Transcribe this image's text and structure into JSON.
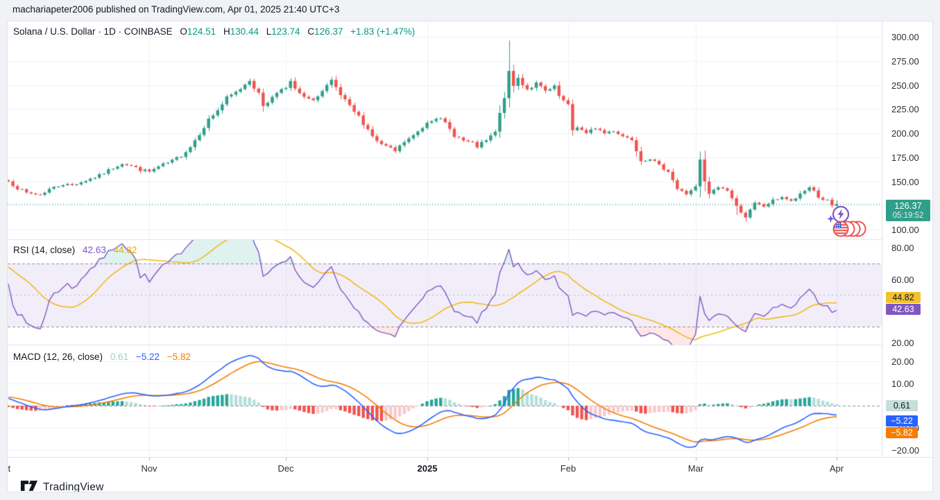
{
  "page": {
    "publish_info": "machariapeter2006 published on TradingView.com, Apr 01, 2025 21:40 UTC+3"
  },
  "chart": {
    "legend": {
      "title": "Solana / U.S. Dollar",
      "meta": " · 1D · COINBASE",
      "o_label": "O",
      "o_value": "124.51",
      "h_label": "H",
      "h_value": "130.44",
      "l_label": "L",
      "l_value": "123.74",
      "c_label": "C",
      "c_value": "126.37",
      "change": "+1.83 (+1.47%)"
    },
    "price_badge": {
      "price": "126.37",
      "countdown": "05:19:52"
    }
  },
  "rsi_panel": {
    "legend_label": "RSI (14, close)",
    "line_value": "42.63",
    "ma_value": "44.82"
  },
  "macd_panel": {
    "legend_label": "MACD (12, 26, close)",
    "hist_value": "0.61",
    "macd_value": "−5.22",
    "signal_value": "−5.82"
  },
  "footer": {
    "logo_text": "TradingView"
  },
  "colors": {
    "up": "#2f9e8a",
    "down": "#ef5350",
    "teal_text": "#089981",
    "rsi_line": "#7e57c2",
    "rsi_ma": "#f0b91d",
    "rsi_band_fill": "rgba(126,87,194,0.10)",
    "rsi_over_fill": "rgba(8,153,129,0.13)",
    "rsi_under_fill": "rgba(244,67,54,0.12)",
    "macd_line": "#2962ff",
    "macd_signal": "#f57c00",
    "hist_pos": "#26a69a",
    "hist_pos_weak": "#b2dfdb",
    "hist_neg": "#ef5350",
    "hist_neg_weak": "#f8c9cb",
    "grid": "#eef1f6",
    "separator": "#e0e3eb",
    "dash": "#8a8e99",
    "dash_mid": "#b0b3bc",
    "last_price_line": "#089981"
  },
  "chart_data": {
    "type": "candlestick",
    "symbol": "Solana / U.S. Dollar",
    "exchange": "COINBASE",
    "interval": "1D",
    "last_price": 126.37,
    "final_candle": {
      "open": 124.51,
      "high": 130.44,
      "low": 123.74,
      "close": 126.37
    },
    "price_axis": {
      "min": 100,
      "max": 300,
      "ticks": [
        {
          "label": "300.00",
          "value": 300
        },
        {
          "label": "275.00",
          "value": 275
        },
        {
          "label": "250.00",
          "value": 250
        },
        {
          "label": "225.00",
          "value": 225
        },
        {
          "label": "200.00",
          "value": 200
        },
        {
          "label": "175.00",
          "value": 175
        },
        {
          "label": "150.00",
          "value": 150
        },
        {
          "label": "125.00",
          "value": 125
        },
        {
          "label": "100.00",
          "value": 100
        }
      ]
    },
    "time_ticks": [
      {
        "label": "Oct",
        "day": -1,
        "bold": false
      },
      {
        "label": "Nov",
        "day": 31,
        "bold": false
      },
      {
        "label": "Dec",
        "day": 61,
        "bold": false
      },
      {
        "label": "2025",
        "day": 92,
        "bold": true
      },
      {
        "label": "Feb",
        "day": 123,
        "bold": false
      },
      {
        "label": "Mar",
        "day": 151,
        "bold": false
      },
      {
        "label": "Apr",
        "day": 182,
        "bold": false
      }
    ],
    "lead_in_days": 40,
    "days_total": 182,
    "close_waypoints": [
      [
        -40,
        134
      ],
      [
        -35,
        130
      ],
      [
        -30,
        127
      ],
      [
        -25,
        135
      ],
      [
        -20,
        146
      ],
      [
        -15,
        152
      ],
      [
        -10,
        147
      ],
      [
        -5,
        155
      ],
      [
        -2,
        152
      ],
      [
        0,
        150
      ],
      [
        2,
        143
      ],
      [
        4,
        138
      ],
      [
        7,
        136
      ],
      [
        9,
        142
      ],
      [
        12,
        147
      ],
      [
        14,
        146
      ],
      [
        17,
        151
      ],
      [
        20,
        156
      ],
      [
        23,
        164
      ],
      [
        25,
        169
      ],
      [
        27,
        166
      ],
      [
        29,
        162
      ],
      [
        31,
        160
      ],
      [
        33,
        165
      ],
      [
        36,
        171
      ],
      [
        38,
        177
      ],
      [
        40,
        186
      ],
      [
        42,
        200
      ],
      [
        44,
        214
      ],
      [
        46,
        224
      ],
      [
        48,
        236
      ],
      [
        50,
        242
      ],
      [
        52,
        251
      ],
      [
        53,
        256
      ],
      [
        55,
        240
      ],
      [
        56,
        229
      ],
      [
        58,
        237
      ],
      [
        60,
        248
      ],
      [
        61,
        246
      ],
      [
        62,
        252
      ],
      [
        64,
        240
      ],
      [
        66,
        234
      ],
      [
        68,
        238
      ],
      [
        70,
        248
      ],
      [
        71,
        253
      ],
      [
        73,
        239
      ],
      [
        75,
        227
      ],
      [
        77,
        217
      ],
      [
        79,
        204
      ],
      [
        81,
        191
      ],
      [
        83,
        186
      ],
      [
        85,
        181
      ],
      [
        87,
        191
      ],
      [
        89,
        197
      ],
      [
        91,
        206
      ],
      [
        92,
        212
      ],
      [
        94,
        217
      ],
      [
        96,
        210
      ],
      [
        98,
        198
      ],
      [
        100,
        192
      ],
      [
        102,
        189
      ],
      [
        103,
        186
      ],
      [
        105,
        192
      ],
      [
        107,
        201
      ],
      [
        109,
        238
      ],
      [
        110,
        262
      ],
      [
        111,
        249
      ],
      [
        112,
        257
      ],
      [
        114,
        246
      ],
      [
        116,
        251
      ],
      [
        118,
        243
      ],
      [
        120,
        247
      ],
      [
        121,
        238
      ],
      [
        123,
        228
      ],
      [
        124,
        203
      ],
      [
        125,
        207
      ],
      [
        127,
        199
      ],
      [
        129,
        206
      ],
      [
        131,
        200
      ],
      [
        133,
        203
      ],
      [
        135,
        197
      ],
      [
        137,
        194
      ],
      [
        139,
        172
      ],
      [
        141,
        174
      ],
      [
        143,
        166
      ],
      [
        145,
        161
      ],
      [
        147,
        142
      ],
      [
        149,
        137
      ],
      [
        150,
        141
      ],
      [
        151,
        144
      ],
      [
        152,
        172
      ],
      [
        153,
        149
      ],
      [
        154,
        137
      ],
      [
        156,
        144
      ],
      [
        158,
        141
      ],
      [
        160,
        124
      ],
      [
        162,
        113
      ],
      [
        164,
        127
      ],
      [
        166,
        124
      ],
      [
        168,
        130
      ],
      [
        170,
        134
      ],
      [
        172,
        129
      ],
      [
        174,
        136
      ],
      [
        176,
        144
      ],
      [
        177,
        141
      ],
      [
        178,
        133
      ],
      [
        180,
        130
      ],
      [
        181,
        125
      ],
      [
        182,
        126.37
      ]
    ],
    "wick_high_overrides": {
      "110": 296,
      "152": 181
    },
    "wick_low_overrides": {
      "160": 115,
      "162": 108
    },
    "indicators": {
      "rsi": {
        "period": 14,
        "ma_period": 14,
        "overbought": 70,
        "midline": 50,
        "oversold": 30,
        "last_value": 42.63,
        "last_ma": 44.82,
        "axis_ticks": [
          {
            "label": "80.00",
            "value": 80
          },
          {
            "label": "60.00",
            "value": 60
          },
          {
            "label": "40.00",
            "value": 40
          },
          {
            "label": "20.00",
            "value": 20
          }
        ]
      },
      "macd": {
        "fast": 12,
        "slow": 26,
        "signal": 9,
        "last_hist": 0.61,
        "last_macd": -5.22,
        "last_signal": -5.82,
        "axis_ticks": [
          {
            "label": "20.00",
            "value": 20
          },
          {
            "label": "10.00",
            "value": 10
          },
          {
            "label": "0.00",
            "value": 0
          },
          {
            "label": "−10.00",
            "value": -10
          },
          {
            "label": "−20.00",
            "value": -20
          }
        ]
      }
    }
  }
}
